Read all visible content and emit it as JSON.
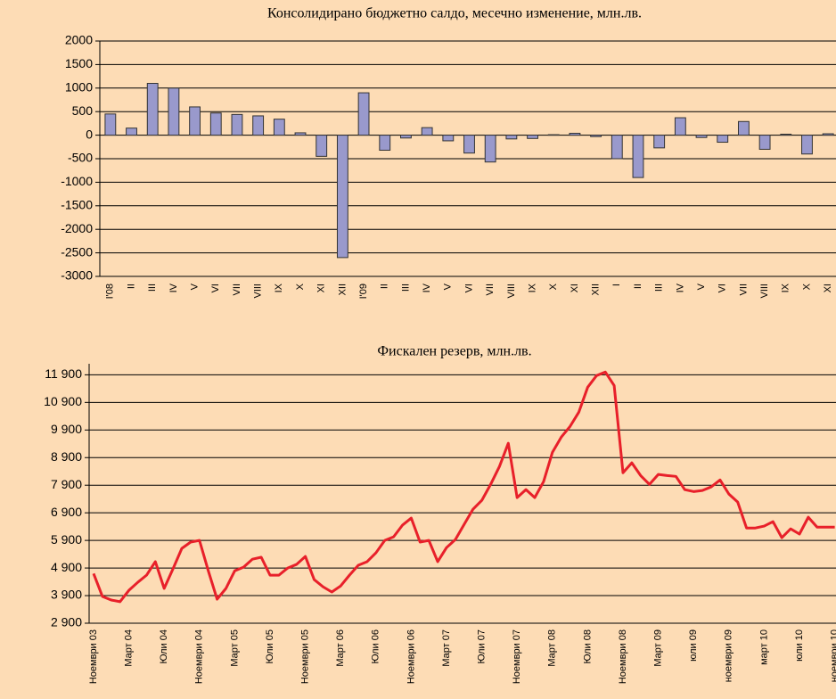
{
  "chart_data": [
    {
      "type": "bar",
      "title": "Консолидирано бюджетно салдо, месечно изменение, млн.лв.",
      "categories": [
        "I'08",
        "II",
        "III",
        "IV",
        "V",
        "VI",
        "VII",
        "VIII",
        "IX",
        "X",
        "XI",
        "XII",
        "I'09",
        "II",
        "III",
        "IV",
        "V",
        "VI",
        "VII",
        "VIII",
        "IX",
        "X",
        "XI",
        "XII",
        "I",
        "II",
        "III",
        "IV",
        "V",
        "VI",
        "VII",
        "VIII",
        "IX",
        "X",
        "XI"
      ],
      "values": [
        450,
        150,
        1100,
        1000,
        600,
        470,
        440,
        410,
        340,
        50,
        -450,
        -2600,
        900,
        -320,
        -60,
        160,
        -120,
        -380,
        -570,
        -80,
        -70,
        10,
        40,
        -30,
        -500,
        -900,
        -270,
        370,
        -50,
        -150,
        290,
        -300,
        20,
        -400,
        30
      ],
      "color": "#9999cc",
      "ylim": [
        -3000,
        2000
      ],
      "yticks": [
        -3000,
        -2500,
        -2000,
        -1500,
        -1000,
        -500,
        0,
        500,
        1000,
        1500,
        2000
      ],
      "grid": true
    },
    {
      "type": "line",
      "title": "Фискален резерв, млн.лв.",
      "categories": [
        "Ноември 03",
        null,
        null,
        null,
        "Март 04",
        null,
        null,
        null,
        "Юли 04",
        null,
        null,
        null,
        "Ноември 04",
        null,
        null,
        null,
        "Март 05",
        null,
        null,
        null,
        "Юли 05",
        null,
        null,
        null,
        "Ноември 05",
        null,
        null,
        null,
        "Март 06",
        null,
        null,
        null,
        "Юли 06",
        null,
        null,
        null,
        "Ноември 06",
        null,
        null,
        null,
        "Март 07",
        null,
        null,
        null,
        "Юли 07",
        null,
        null,
        null,
        "Ноември 07",
        null,
        null,
        null,
        "Март 08",
        null,
        null,
        null,
        "Юли 08",
        null,
        null,
        null,
        "Ноември 08",
        null,
        null,
        null,
        "Март 09",
        null,
        null,
        null,
        "юли 09",
        null,
        null,
        null,
        "ноември 09",
        null,
        null,
        null,
        "март 10",
        null,
        null,
        null,
        "юли 10",
        null,
        null,
        null,
        "ноември 10"
      ],
      "values": [
        4700,
        3870,
        3740,
        3680,
        4090,
        4380,
        4640,
        5130,
        4160,
        4870,
        5610,
        5840,
        5900,
        4800,
        3770,
        4160,
        4800,
        4930,
        5220,
        5290,
        4640,
        4640,
        4900,
        5030,
        5320,
        4480,
        4220,
        4030,
        4250,
        4640,
        5000,
        5130,
        5450,
        5900,
        6030,
        6450,
        6710,
        5840,
        5900,
        5130,
        5640,
        5930,
        6480,
        7030,
        7350,
        7930,
        8580,
        9420,
        7450,
        7740,
        7450,
        8030,
        9090,
        9640,
        10030,
        10550,
        11450,
        11870,
        12000,
        11510,
        8350,
        8710,
        8250,
        7930,
        8290,
        8250,
        8220,
        7740,
        7670,
        7710,
        7840,
        8090,
        7580,
        7290,
        6350,
        6350,
        6420,
        6580,
        6000,
        6320,
        6130,
        6740,
        6380,
        6380,
        6380
      ],
      "color": "#e8202a",
      "ylim": [
        2900,
        12300
      ],
      "yticks": [
        {
          "value": 2900,
          "label": "2 900"
        },
        {
          "value": 3900,
          "label": "3 900"
        },
        {
          "value": 4900,
          "label": "4 900"
        },
        {
          "value": 5900,
          "label": "5 900"
        },
        {
          "value": 6900,
          "label": "6 900"
        },
        {
          "value": 7900,
          "label": "7 900"
        },
        {
          "value": 8900,
          "label": "8 900"
        },
        {
          "value": 9900,
          "label": "9 900"
        },
        {
          "value": 10900,
          "label": "10 900"
        },
        {
          "value": 11900,
          "label": "11 900"
        }
      ],
      "grid": true
    }
  ]
}
